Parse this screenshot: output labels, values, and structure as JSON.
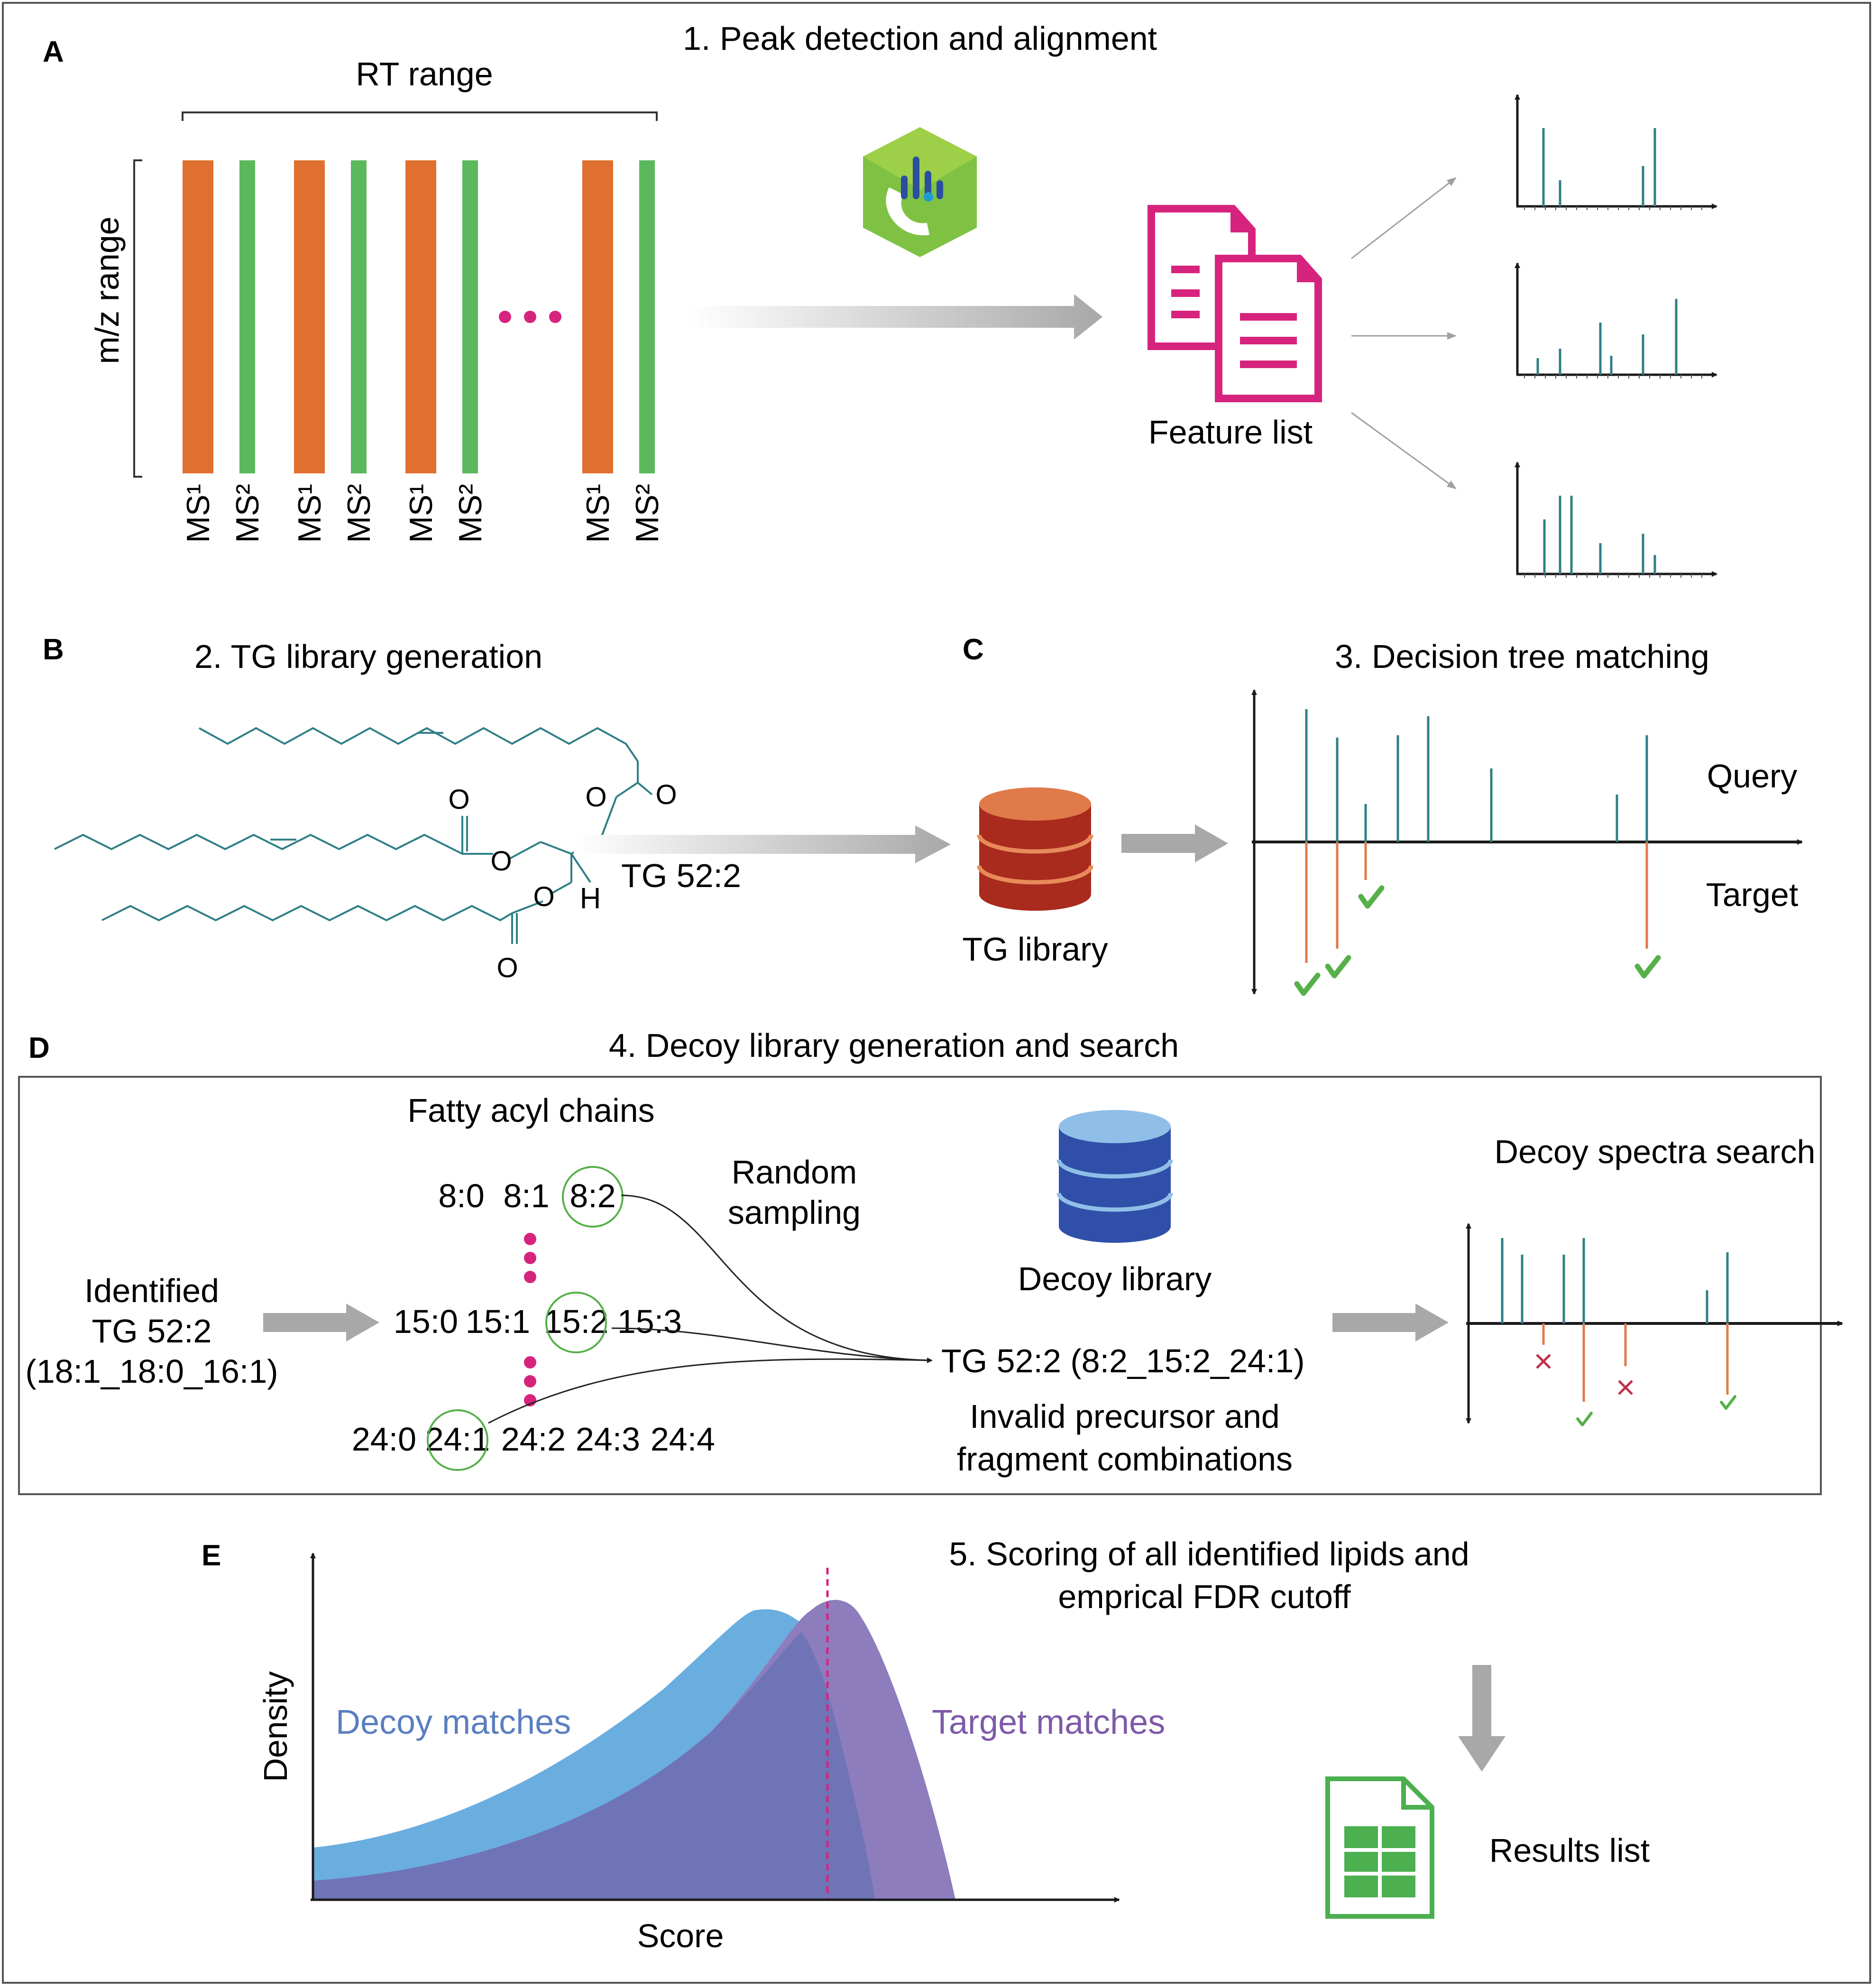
{
  "panel_labels": {
    "a": "A",
    "b": "B",
    "c": "C",
    "d": "D",
    "e": "E"
  },
  "section_a": {
    "title": "1. Peak detection and alignment",
    "rt_range": "RT range",
    "mz_range": "m/z range",
    "scan_labels": [
      "MS¹",
      "MS²",
      "MS¹",
      "MS²",
      "MS¹",
      "MS²",
      "MS¹",
      "MS²"
    ],
    "feature_list": "Feature list",
    "colors": {
      "ms1": "#e07030",
      "ms2": "#5cb85c",
      "doc": "#d6247e",
      "spectrum": "#2f7f86"
    }
  },
  "section_b": {
    "title": "2. TG library generation",
    "molecule_label": "TG 52:2",
    "atoms": [
      "O",
      "O",
      "O",
      "O",
      "O",
      "O",
      "H"
    ]
  },
  "section_c": {
    "title": "3. Decision tree matching",
    "library_label": "TG library",
    "query": "Query",
    "target": "Target",
    "colors": {
      "db": "#b23020",
      "target_line": "#e07a4a",
      "check": "#56b04a"
    }
  },
  "section_d": {
    "title": "4. Decoy library generation and search",
    "fatty_acyl_chains": "Fatty acyl chains",
    "identified": [
      "Identified",
      "TG 52:2",
      "(18:1_18:0_16:1)"
    ],
    "chain_rows": [
      [
        "8:0",
        "8:1",
        "8:2"
      ],
      [
        "15:0",
        "15:1",
        "15:2",
        "15:3"
      ],
      [
        "24:0",
        "24:1",
        "24:2",
        "24:3",
        "24:4"
      ]
    ],
    "random_sampling": [
      "Random",
      "sampling"
    ],
    "decoy_library": "Decoy library",
    "decoy_result": "TG 52:2 (8:2_15:2_24:1)",
    "invalid_note": [
      "Invalid precursor and",
      "fragment combinations"
    ],
    "decoy_search": "Decoy spectra search",
    "colors": {
      "db": "#2f4fa8",
      "db_top": "#8fbfe8",
      "cross": "#c0304a"
    }
  },
  "section_e": {
    "title": [
      "5. Scoring of all identified lipids and",
      "emprical FDR cutoff"
    ],
    "ylabel": "Density",
    "xlabel": "Score",
    "decoy_label": "Decoy matches",
    "target_label": "Target matches",
    "results_list": "Results list",
    "colors": {
      "decoy": "#6aaee0",
      "target": "#8d7dbd",
      "overlap": "#6f74b6",
      "cutoff": "#d6247e",
      "decoy_text": "#5a7fc0",
      "target_text": "#7d5aa8",
      "sheet": "#4caf50"
    }
  }
}
